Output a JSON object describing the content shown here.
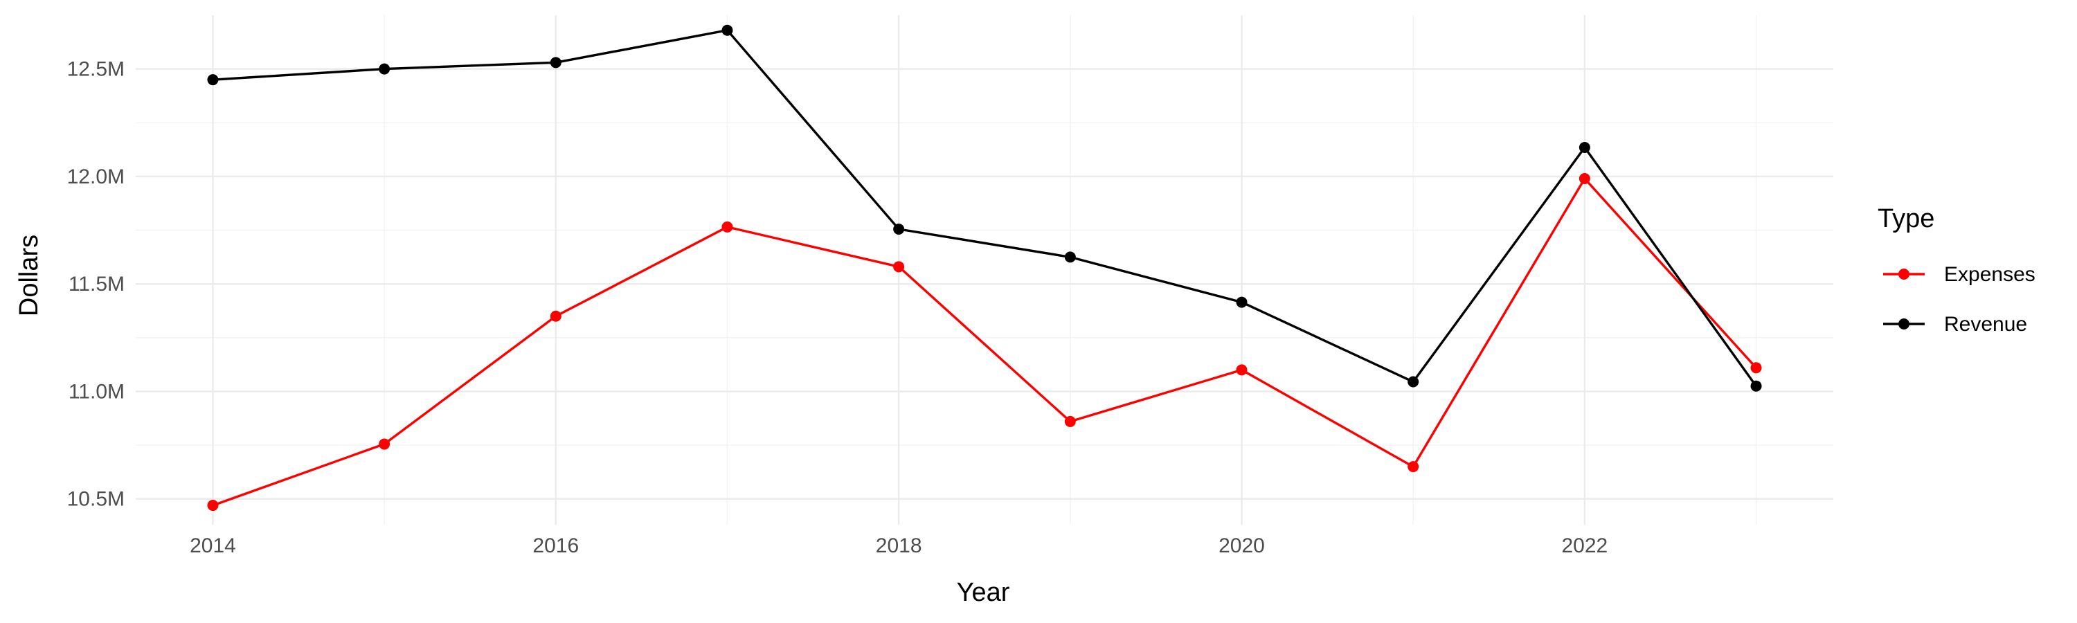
{
  "chart_data": {
    "type": "line",
    "xlabel": "Year",
    "ylabel": "Dollars",
    "x": [
      2014,
      2015,
      2016,
      2017,
      2018,
      2019,
      2020,
      2021,
      2022,
      2023
    ],
    "x_ticks": [
      2014,
      2016,
      2018,
      2020,
      2022
    ],
    "x_tick_labels": [
      "2014",
      "2016",
      "2018",
      "2020",
      "2022"
    ],
    "xlim": [
      2013.55,
      2023.45
    ],
    "y_ticks": [
      10500000,
      11000000,
      11500000,
      12000000,
      12500000
    ],
    "y_tick_labels": [
      "10.5M",
      "11.0M",
      "11.5M",
      "12.0M",
      "12.5M"
    ],
    "ylim": [
      10380000,
      12750000
    ],
    "grid": true,
    "legend": {
      "title": "Type",
      "position": "right"
    },
    "series": [
      {
        "name": "Expenses",
        "color": "#ff0000",
        "values": [
          10470000,
          10755000,
          11350000,
          11765000,
          11580000,
          10860000,
          11100000,
          10650000,
          11990000,
          11110000
        ]
      },
      {
        "name": "Revenue",
        "color": "#000000",
        "values": [
          12450000,
          12500000,
          12530000,
          12680000,
          11755000,
          11625000,
          11415000,
          11045000,
          12135000,
          11025000
        ]
      }
    ]
  }
}
